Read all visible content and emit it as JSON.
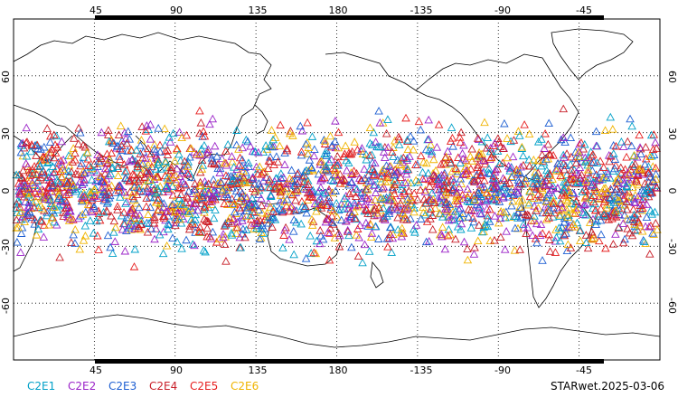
{
  "map": {
    "top_lon_labels": [
      "45",
      "90",
      "135",
      "180",
      "-135",
      "-90",
      "-45"
    ],
    "bottom_lon_labels": [
      "45",
      "90",
      "135",
      "180",
      "-135",
      "-90",
      "-45"
    ],
    "left_lat_labels": [
      "60",
      "30",
      "0",
      "-30",
      "-60"
    ],
    "right_lat_labels": [
      "60",
      "30",
      "0",
      "-30",
      "-60"
    ],
    "grid_lon_values": [
      45,
      90,
      135,
      180,
      -135,
      -90,
      -45
    ],
    "grid_lat_values": [
      60,
      30,
      0,
      -30,
      -60
    ],
    "lon_range": [
      0,
      360
    ],
    "lat_range": [
      -90,
      90
    ],
    "projection": "cylindrical equidistant, centered on 180",
    "grid": "dotted",
    "land_outline_color": "#000000"
  },
  "legend": {
    "placement": "bottom-left",
    "items": [
      {
        "label": "C2E1",
        "color": "#00a0c8"
      },
      {
        "label": "C2E2",
        "color": "#9b23c8"
      },
      {
        "label": "C2E3",
        "color": "#1e5fd2"
      },
      {
        "label": "C2E4",
        "color": "#c81e28"
      },
      {
        "label": "C2E5",
        "color": "#e61e1e"
      },
      {
        "label": "C2E6",
        "color": "#f0b400"
      }
    ]
  },
  "stamp": {
    "text": "STARwet.2025-03-06"
  },
  "observations": {
    "marker": "open-triangle",
    "lat_band": [
      -45,
      45
    ],
    "density": "dense, global tropics and subtropics"
  }
}
